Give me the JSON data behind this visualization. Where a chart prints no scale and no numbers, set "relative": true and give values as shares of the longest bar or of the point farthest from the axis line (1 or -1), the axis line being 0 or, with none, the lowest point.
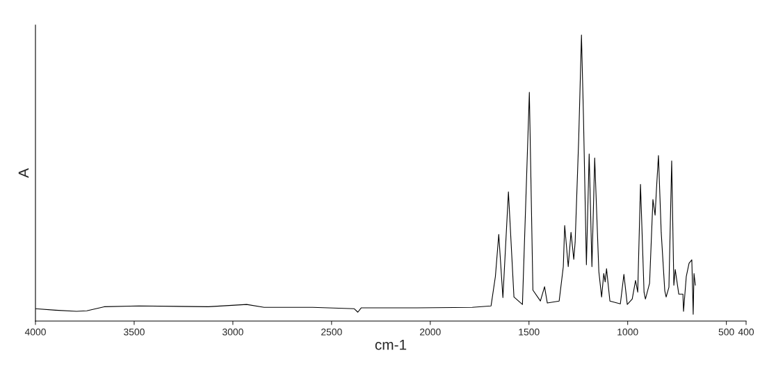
{
  "chart_data": {
    "type": "line",
    "xlabel": "cm-1",
    "ylabel": "A",
    "relative": true,
    "grid": false,
    "legend": false,
    "xlim": [
      4000,
      400
    ],
    "xticks": [
      4000,
      3500,
      3000,
      2500,
      2000,
      1500,
      1000,
      500,
      400
    ],
    "x": [
      4000,
      3898,
      3792,
      3740,
      3652,
      3476,
      3124,
      2930,
      2842,
      2596,
      2385,
      2367,
      2350,
      2068,
      1787,
      1692,
      1670,
      1653,
      1632,
      1604,
      1576,
      1533,
      1498,
      1480,
      1442,
      1421,
      1407,
      1347,
      1326,
      1319,
      1301,
      1287,
      1273,
      1266,
      1248,
      1234,
      1224,
      1209,
      1195,
      1181,
      1167,
      1146,
      1132,
      1121,
      1114,
      1107,
      1090,
      1037,
      1019,
      1002,
      977,
      960,
      949,
      935,
      917,
      910,
      889,
      872,
      861,
      854,
      844,
      830,
      812,
      805,
      791,
      777,
      766,
      759,
      741,
      720,
      717,
      703,
      689,
      675,
      668,
      664,
      657
    ],
    "series": [
      {
        "color": "#000000",
        "values": [
          0.043,
          0.038,
          0.034,
          0.036,
          0.05,
          0.053,
          0.05,
          0.058,
          0.048,
          0.048,
          0.043,
          0.031,
          0.046,
          0.046,
          0.048,
          0.053,
          0.156,
          0.303,
          0.082,
          0.452,
          0.084,
          0.058,
          0.8,
          0.108,
          0.07,
          0.12,
          0.063,
          0.07,
          0.19,
          0.334,
          0.19,
          0.31,
          0.216,
          0.276,
          0.637,
          1.0,
          0.719,
          0.197,
          0.584,
          0.19,
          0.57,
          0.173,
          0.084,
          0.166,
          0.137,
          0.183,
          0.07,
          0.06,
          0.163,
          0.058,
          0.077,
          0.142,
          0.101,
          0.478,
          0.101,
          0.077,
          0.132,
          0.425,
          0.37,
          0.462,
          0.579,
          0.31,
          0.106,
          0.084,
          0.118,
          0.56,
          0.125,
          0.18,
          0.094,
          0.094,
          0.034,
          0.156,
          0.202,
          0.214,
          0.024,
          0.166,
          0.125
        ]
      }
    ]
  }
}
